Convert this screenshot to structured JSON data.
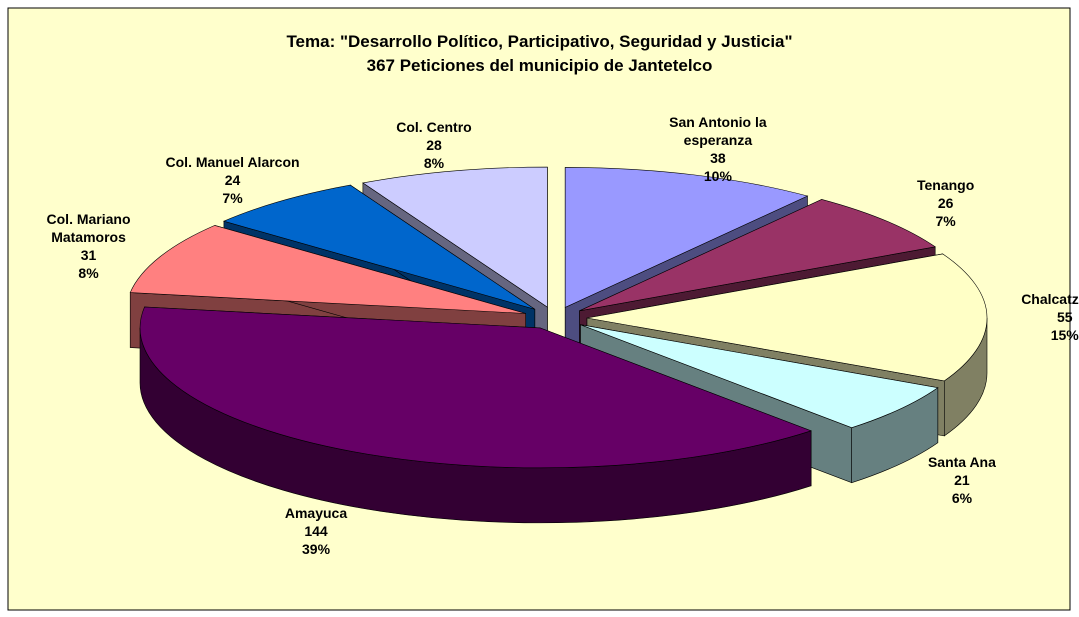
{
  "chart_data": {
    "type": "pie3d",
    "title": "Tema: \"Desarrollo Político, Participativo, Seguridad y Justicia\"",
    "subtitle": "367 Peticiones del municipio de Jantetelco",
    "categories": [
      "San Antonio la esperanza",
      "Tenango",
      "Chalcatzingo",
      "Santa Ana",
      "Amayuca",
      "Col. Mariano Matamoros",
      "Col. Manuel Alarcon",
      "Col. Centro"
    ],
    "values": [
      38,
      26,
      55,
      21,
      144,
      31,
      24,
      28
    ],
    "percent_labels": [
      "10%",
      "7%",
      "15%",
      "6%",
      "39%",
      "8%",
      "7%",
      "8%"
    ],
    "colors": [
      "#9999FF",
      "#993366",
      "#FFFFC6",
      "#CCFFFF",
      "#660066",
      "#FF8080",
      "#0066CC",
      "#CCCCFF"
    ]
  }
}
